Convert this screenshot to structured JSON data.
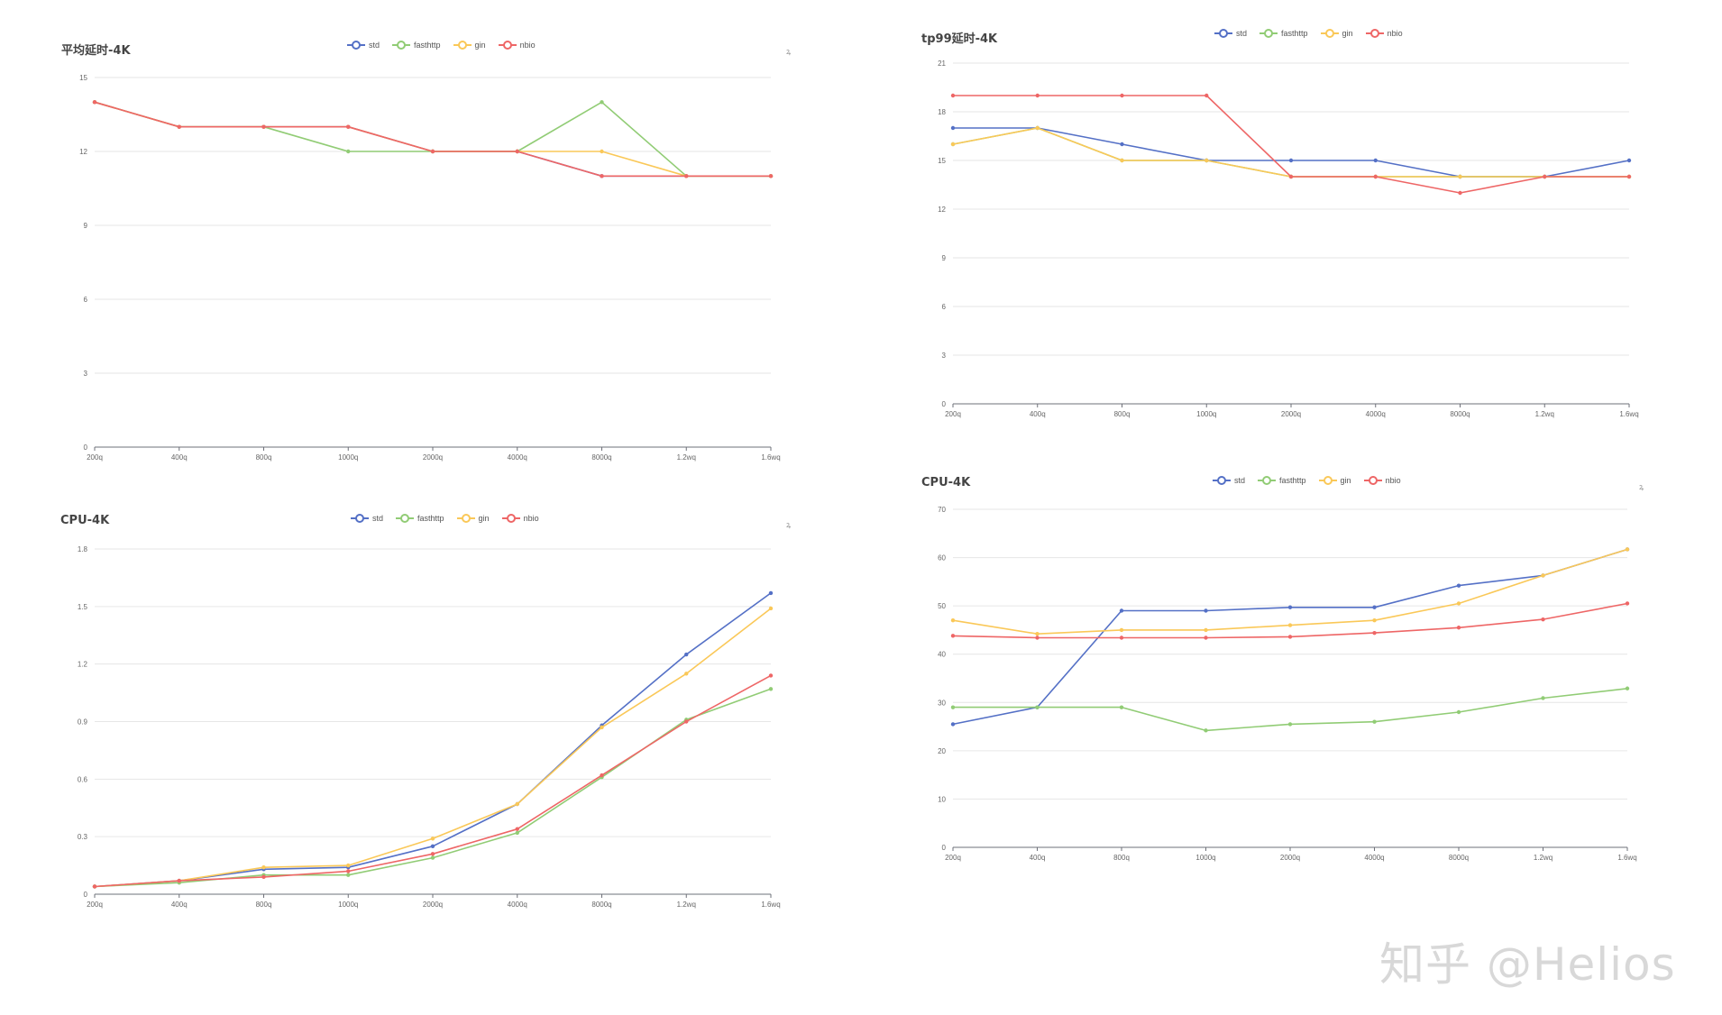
{
  "series_colors": {
    "std": "#5470c6",
    "fasthttp": "#91cc75",
    "gin": "#fac858",
    "nbio": "#ee6666"
  },
  "watermark": "知乎 @Helios",
  "corner_mark": "ꝝ",
  "chart_data": [
    {
      "type": "line",
      "title": "平均延时-4K",
      "legend_position": "top",
      "grid": true,
      "categories": [
        "200q",
        "400q",
        "800q",
        "1000q",
        "2000q",
        "4000q",
        "8000q",
        "1.2wq",
        "1.6wq"
      ],
      "y_ticks": [
        "0",
        "3",
        "6",
        "9",
        "12",
        "15"
      ],
      "ylim": [
        0,
        15
      ],
      "series": [
        {
          "name": "std",
          "values": [
            14,
            13,
            13,
            13,
            12,
            12,
            11,
            11,
            11
          ]
        },
        {
          "name": "fasthttp",
          "values": [
            14,
            13,
            13,
            12,
            12,
            12,
            14,
            11,
            11
          ]
        },
        {
          "name": "gin",
          "values": [
            14,
            13,
            13,
            13,
            12,
            12,
            12,
            11,
            11
          ]
        },
        {
          "name": "nbio",
          "values": [
            14,
            13,
            13,
            13,
            12,
            12,
            11,
            11,
            11
          ]
        }
      ]
    },
    {
      "type": "line",
      "title": "tp99延时-4K",
      "legend_position": "top",
      "grid": true,
      "categories": [
        "200q",
        "400q",
        "800q",
        "1000q",
        "2000q",
        "4000q",
        "8000q",
        "1.2wq",
        "1.6wq"
      ],
      "y_ticks": [
        "0",
        "3",
        "6",
        "9",
        "12",
        "15",
        "18",
        "21"
      ],
      "ylim": [
        0,
        21
      ],
      "series": [
        {
          "name": "std",
          "values": [
            17,
            17,
            16,
            15,
            15,
            15,
            14,
            14,
            15
          ]
        },
        {
          "name": "fasthttp",
          "values": [
            16,
            17,
            15,
            15,
            14,
            14,
            14,
            14,
            14
          ]
        },
        {
          "name": "gin",
          "values": [
            16,
            17,
            15,
            15,
            14,
            14,
            14,
            14,
            14
          ]
        },
        {
          "name": "nbio",
          "values": [
            19,
            19,
            19,
            19,
            14,
            14,
            13,
            14,
            14
          ]
        }
      ]
    },
    {
      "type": "line",
      "title": "CPU-4K",
      "legend_position": "top",
      "grid": true,
      "categories": [
        "200q",
        "400q",
        "800q",
        "1000q",
        "2000q",
        "4000q",
        "8000q",
        "1.2wq",
        "1.6wq"
      ],
      "y_ticks": [
        "0",
        "0.3",
        "0.6",
        "0.9",
        "1.2",
        "1.5",
        "1.8"
      ],
      "ylim": [
        0,
        1.8
      ],
      "series": [
        {
          "name": "std",
          "values": [
            0.04,
            0.07,
            0.13,
            0.14,
            0.25,
            0.47,
            0.88,
            1.25,
            1.57
          ]
        },
        {
          "name": "fasthttp",
          "values": [
            0.04,
            0.06,
            0.1,
            0.1,
            0.19,
            0.32,
            0.61,
            0.91,
            1.07
          ]
        },
        {
          "name": "gin",
          "values": [
            0.04,
            0.07,
            0.14,
            0.15,
            0.29,
            0.47,
            0.87,
            1.15,
            1.49
          ]
        },
        {
          "name": "nbio",
          "values": [
            0.04,
            0.07,
            0.09,
            0.12,
            0.21,
            0.34,
            0.62,
            0.9,
            1.14
          ]
        }
      ]
    },
    {
      "type": "line",
      "title": "CPU-4K",
      "legend_position": "top",
      "grid": true,
      "categories": [
        "200q",
        "400q",
        "800q",
        "1000q",
        "2000q",
        "4000q",
        "8000q",
        "1.2wq",
        "1.6wq"
      ],
      "y_ticks": [
        "0",
        "10",
        "20",
        "30",
        "40",
        "50",
        "60",
        "70"
      ],
      "ylim": [
        0,
        70
      ],
      "series": [
        {
          "name": "std",
          "values": [
            25.5,
            29,
            49,
            49,
            49.7,
            49.7,
            54.2,
            56.3,
            61.7
          ]
        },
        {
          "name": "fasthttp",
          "values": [
            29,
            29,
            29,
            24.2,
            25.5,
            26,
            28,
            30.9,
            32.9
          ]
        },
        {
          "name": "gin",
          "values": [
            47,
            44.2,
            45,
            45,
            46,
            47,
            50.5,
            56.3,
            61.7
          ]
        },
        {
          "name": "nbio",
          "values": [
            43.8,
            43.4,
            43.4,
            43.4,
            43.6,
            44.4,
            45.5,
            47.2,
            50.5
          ]
        }
      ]
    }
  ]
}
